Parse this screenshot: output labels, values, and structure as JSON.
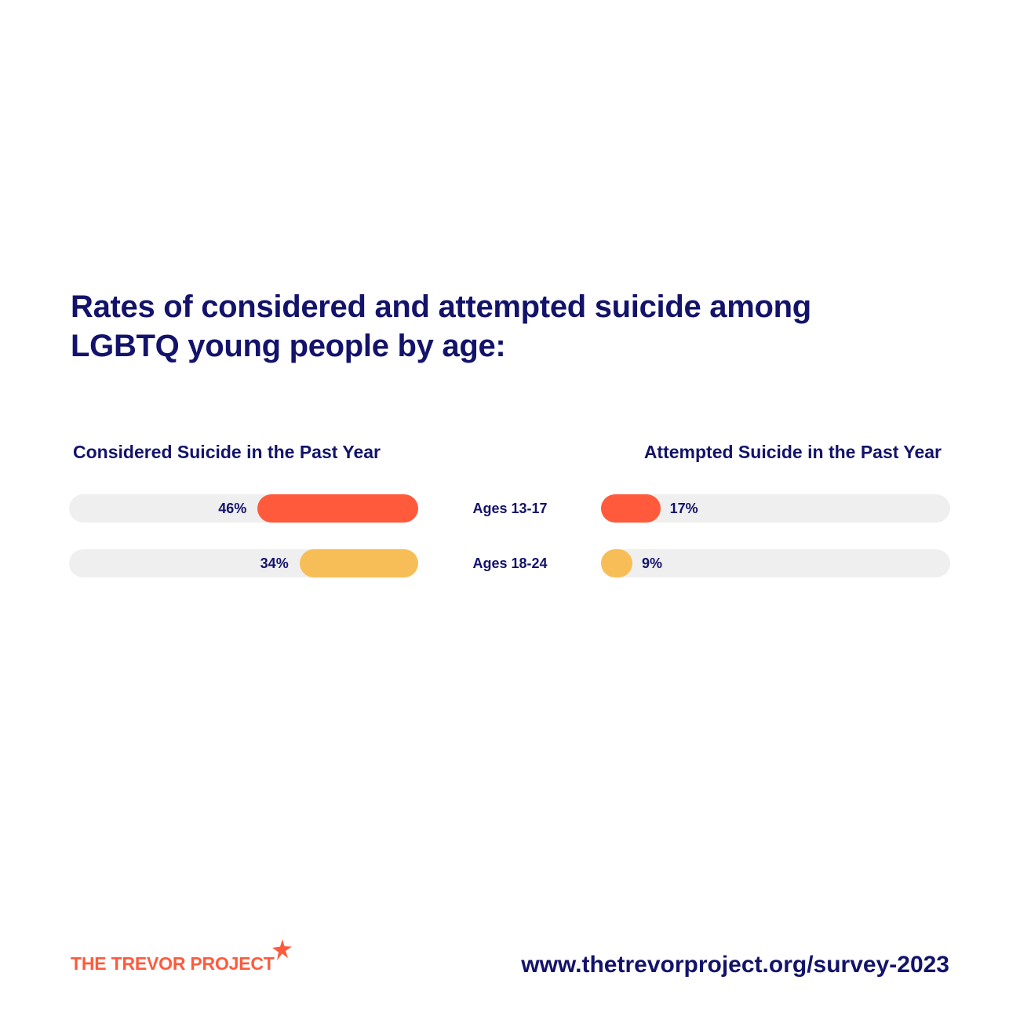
{
  "title_lines": [
    "Rates of considered and attempted suicide among",
    "LGBTQ young people by age:"
  ],
  "colors": {
    "text": "#13136b",
    "ages_13_17": "#ff5a3c",
    "ages_18_24": "#f7be58",
    "track": "#efefef",
    "brand": "#ff5a3c"
  },
  "chart_data": [
    {
      "type": "bar",
      "orientation": "horizontal",
      "direction": "right-to-left",
      "title": "Considered Suicide in the Past Year",
      "categories": [
        "Ages 13-17",
        "Ages 18-24"
      ],
      "values": [
        46,
        34
      ],
      "value_labels": [
        "46%",
        "34%"
      ],
      "xlim": [
        0,
        100
      ]
    },
    {
      "type": "bar",
      "orientation": "horizontal",
      "direction": "left-to-right",
      "title": "Attempted Suicide in the Past Year",
      "categories": [
        "Ages 13-17",
        "Ages 18-24"
      ],
      "values": [
        17,
        9
      ],
      "value_labels": [
        "17%",
        "9%"
      ],
      "xlim": [
        0,
        100
      ]
    }
  ],
  "footer": {
    "logo_text": "THE TREVOR PROJECT",
    "logo_icon": "star-icon",
    "url": "www.thetrevorproject.org/survey-2023"
  }
}
